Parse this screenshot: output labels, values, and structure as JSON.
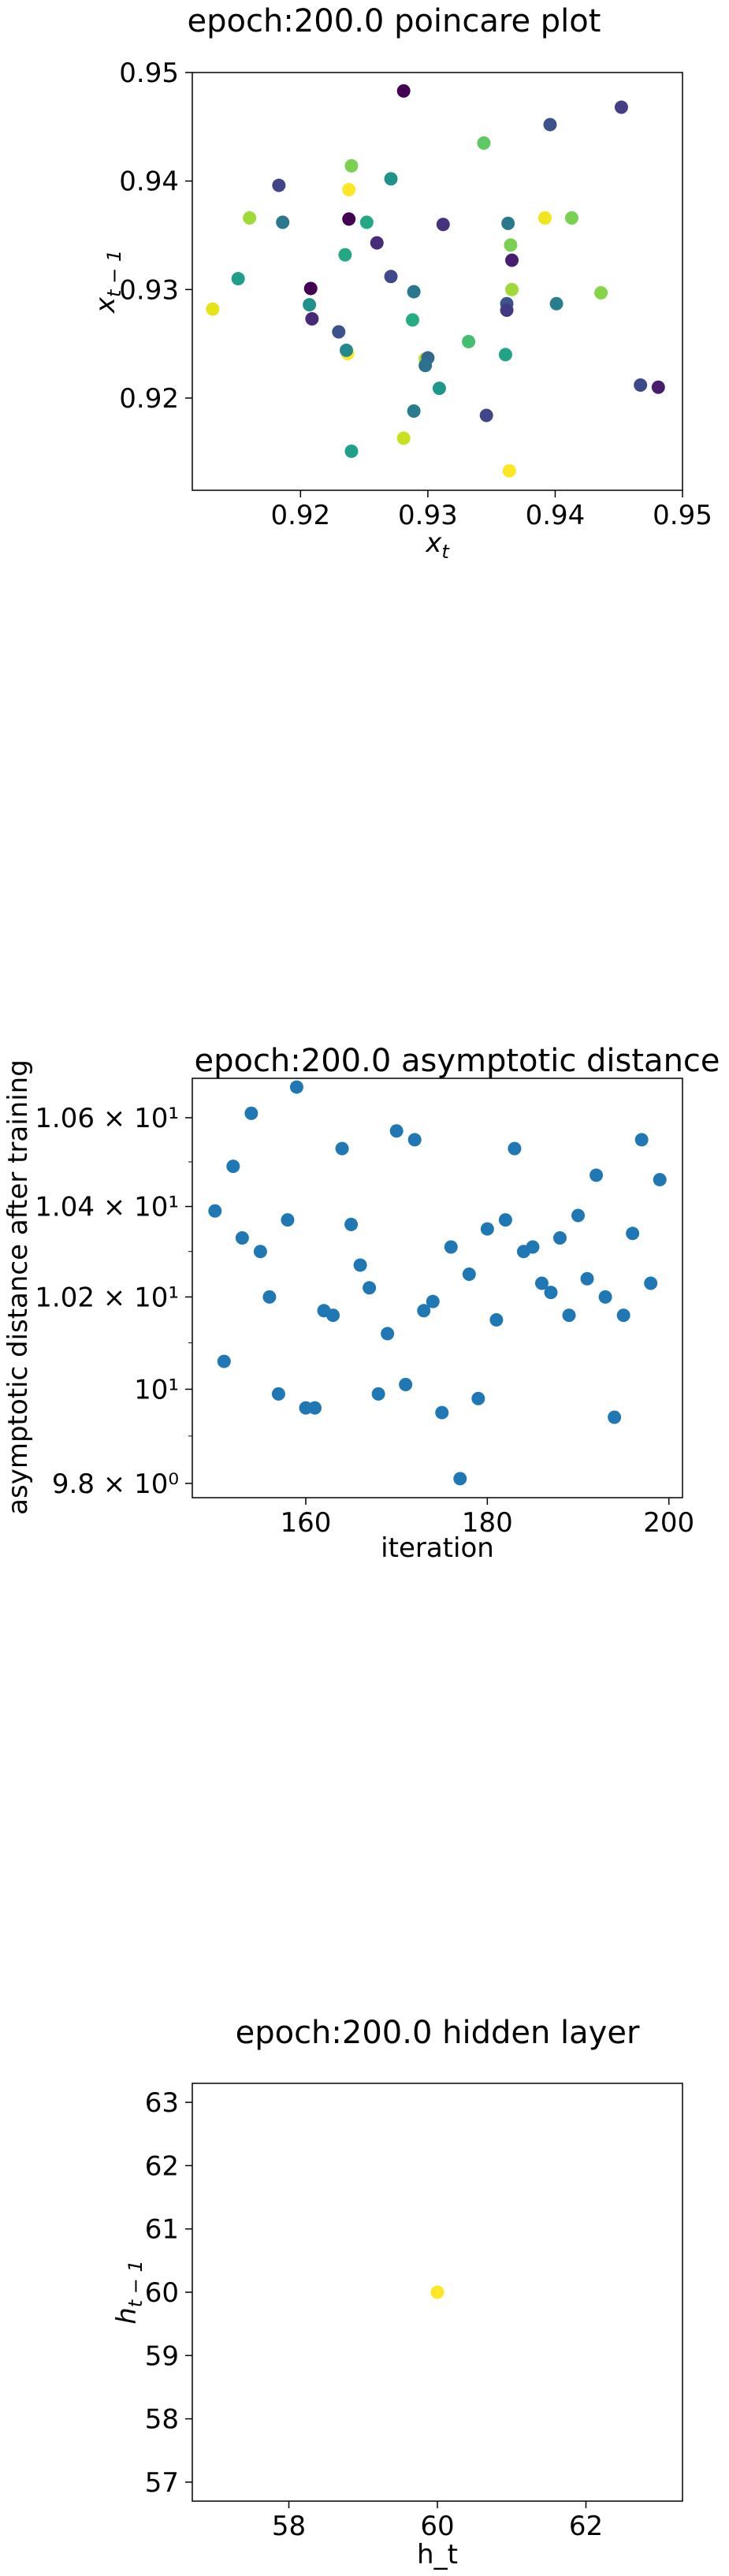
{
  "chart_data": [
    {
      "type": "scatter",
      "title": "epoch:200.0 poincare plot",
      "xlabel": "x_t",
      "ylabel": "x_{t-1}",
      "xlim": [
        0.9115,
        0.95
      ],
      "ylim": [
        0.9115,
        0.95
      ],
      "xticks": [
        0.92,
        0.93,
        0.94,
        0.95
      ],
      "yticks": [
        0.92,
        0.93,
        0.94,
        0.95
      ],
      "xtick_labels": [
        "0.92",
        "0.93",
        "0.94",
        "0.95"
      ],
      "ytick_labels": [
        "0.92",
        "0.93",
        "0.94",
        "0.95"
      ],
      "grid": false,
      "colormap": "viridis",
      "color_encoding": "point index (viridis: dark purple = earliest, yellow = latest)",
      "points": [
        {
          "x": 0.9281,
          "y": 0.9483,
          "c": "#440154"
        },
        {
          "x": 0.9452,
          "y": 0.9468,
          "c": "#433e85"
        },
        {
          "x": 0.9396,
          "y": 0.9452,
          "c": "#3b528b"
        },
        {
          "x": 0.9344,
          "y": 0.9435,
          "c": "#5ec962"
        },
        {
          "x": 0.924,
          "y": 0.9414,
          "c": "#7ad151"
        },
        {
          "x": 0.9183,
          "y": 0.9396,
          "c": "#414487"
        },
        {
          "x": 0.9271,
          "y": 0.9402,
          "c": "#21918c"
        },
        {
          "x": 0.9238,
          "y": 0.9392,
          "c": "#fde725"
        },
        {
          "x": 0.916,
          "y": 0.9366,
          "c": "#a0da39"
        },
        {
          "x": 0.9186,
          "y": 0.9362,
          "c": "#2a788e"
        },
        {
          "x": 0.9238,
          "y": 0.9365,
          "c": "#440154"
        },
        {
          "x": 0.9252,
          "y": 0.9362,
          "c": "#22a884"
        },
        {
          "x": 0.9312,
          "y": 0.936,
          "c": "#46327e"
        },
        {
          "x": 0.9363,
          "y": 0.9361,
          "c": "#2a788e"
        },
        {
          "x": 0.9392,
          "y": 0.9366,
          "c": "#f1e51d"
        },
        {
          "x": 0.9413,
          "y": 0.9366,
          "c": "#7ad151"
        },
        {
          "x": 0.926,
          "y": 0.9343,
          "c": "#472c7a"
        },
        {
          "x": 0.9365,
          "y": 0.9341,
          "c": "#7ad151"
        },
        {
          "x": 0.9235,
          "y": 0.9332,
          "c": "#22a884"
        },
        {
          "x": 0.9366,
          "y": 0.9327,
          "c": "#481f70"
        },
        {
          "x": 0.9271,
          "y": 0.9312,
          "c": "#3e4a89"
        },
        {
          "x": 0.9151,
          "y": 0.931,
          "c": "#1f9e89"
        },
        {
          "x": 0.9208,
          "y": 0.9301,
          "c": "#440154"
        },
        {
          "x": 0.9289,
          "y": 0.9298,
          "c": "#2a788e"
        },
        {
          "x": 0.9366,
          "y": 0.93,
          "c": "#a0da39"
        },
        {
          "x": 0.9436,
          "y": 0.9297,
          "c": "#86d549"
        },
        {
          "x": 0.9207,
          "y": 0.9286,
          "c": "#21918c"
        },
        {
          "x": 0.9362,
          "y": 0.9287,
          "c": "#39558c"
        },
        {
          "x": 0.9401,
          "y": 0.9287,
          "c": "#277f8e"
        },
        {
          "x": 0.9131,
          "y": 0.9282,
          "c": "#e5e419"
        },
        {
          "x": 0.9362,
          "y": 0.9281,
          "c": "#443983"
        },
        {
          "x": 0.9209,
          "y": 0.9273,
          "c": "#482878"
        },
        {
          "x": 0.9288,
          "y": 0.9272,
          "c": "#25ac82"
        },
        {
          "x": 0.923,
          "y": 0.9261,
          "c": "#3b528b"
        },
        {
          "x": 0.9332,
          "y": 0.9252,
          "c": "#44bf70"
        },
        {
          "x": 0.9237,
          "y": 0.9241,
          "c": "#fde725"
        },
        {
          "x": 0.9236,
          "y": 0.9244,
          "c": "#23898e"
        },
        {
          "x": 0.9361,
          "y": 0.924,
          "c": "#20a386"
        },
        {
          "x": 0.9298,
          "y": 0.9236,
          "c": "#b5de2b"
        },
        {
          "x": 0.93,
          "y": 0.9237,
          "c": "#31688e"
        },
        {
          "x": 0.9298,
          "y": 0.923,
          "c": "#2c728e"
        },
        {
          "x": 0.9309,
          "y": 0.9209,
          "c": "#1f988b"
        },
        {
          "x": 0.9467,
          "y": 0.9212,
          "c": "#3e4989"
        },
        {
          "x": 0.9481,
          "y": 0.921,
          "c": "#481c6e"
        },
        {
          "x": 0.9289,
          "y": 0.9188,
          "c": "#287c8e"
        },
        {
          "x": 0.9346,
          "y": 0.9184,
          "c": "#3f4788"
        },
        {
          "x": 0.9281,
          "y": 0.9163,
          "c": "#c8e020"
        },
        {
          "x": 0.924,
          "y": 0.9151,
          "c": "#1fa088"
        },
        {
          "x": 0.9364,
          "y": 0.9133,
          "c": "#fde725"
        }
      ]
    },
    {
      "type": "scatter",
      "title": "epoch:200.0 asymptotic distance",
      "xlabel": "iteration",
      "ylabel": "asymptotic distance after training",
      "yscale": "log",
      "xlim": [
        147.5,
        201.5
      ],
      "ylim": [
        9.77,
        10.69
      ],
      "xticks": [
        160,
        180,
        200
      ],
      "xtick_labels": [
        "160",
        "180",
        "200"
      ],
      "ytick_labels": [
        "9.8 × 10⁰",
        "10¹",
        "1.02 × 10¹",
        "1.04 × 10¹",
        "1.06 × 10¹"
      ],
      "ytick_values": [
        9.8,
        10,
        10.2,
        10.4,
        10.6
      ],
      "grid": false,
      "color": "#1f77b4",
      "x": [
        150,
        151,
        152,
        153,
        154,
        155,
        156,
        157,
        158,
        159,
        160,
        161,
        162,
        163,
        164,
        165,
        166,
        167,
        168,
        169,
        170,
        171,
        172,
        173,
        174,
        175,
        176,
        177,
        178,
        179,
        180,
        181,
        182,
        183,
        184,
        185,
        186,
        187,
        188,
        189,
        190,
        191,
        192,
        193,
        194,
        195,
        196,
        197,
        198,
        199
      ],
      "y": [
        10.39,
        10.06,
        10.49,
        10.33,
        10.61,
        10.3,
        10.2,
        9.99,
        10.37,
        10.67,
        9.96,
        9.96,
        10.17,
        10.16,
        10.53,
        10.36,
        10.27,
        10.22,
        9.99,
        10.12,
        10.57,
        10.01,
        10.55,
        10.17,
        10.19,
        9.95,
        10.31,
        9.81,
        10.25,
        9.98,
        10.35,
        10.15,
        10.37,
        10.53,
        10.3,
        10.31,
        10.23,
        10.21,
        10.33,
        10.16,
        10.38,
        10.24,
        10.47,
        10.2,
        9.94,
        10.16,
        10.34,
        10.55,
        10.23,
        10.46
      ]
    },
    {
      "type": "scatter",
      "title": "epoch:200.0 hidden layer",
      "xlabel": "h_t",
      "ylabel": "h_{t-1}",
      "xlim": [
        56.7,
        63.3
      ],
      "ylim": [
        56.7,
        63.3
      ],
      "xticks": [
        58,
        60,
        62
      ],
      "xtick_labels": [
        "58",
        "60",
        "62"
      ],
      "yticks": [
        57,
        58,
        59,
        60,
        61,
        62,
        63
      ],
      "ytick_labels": [
        "57",
        "58",
        "59",
        "60",
        "61",
        "62",
        "63"
      ],
      "grid": false,
      "points": [
        {
          "x": 60.0,
          "y": 60.0,
          "c": "#fde725"
        }
      ]
    }
  ]
}
